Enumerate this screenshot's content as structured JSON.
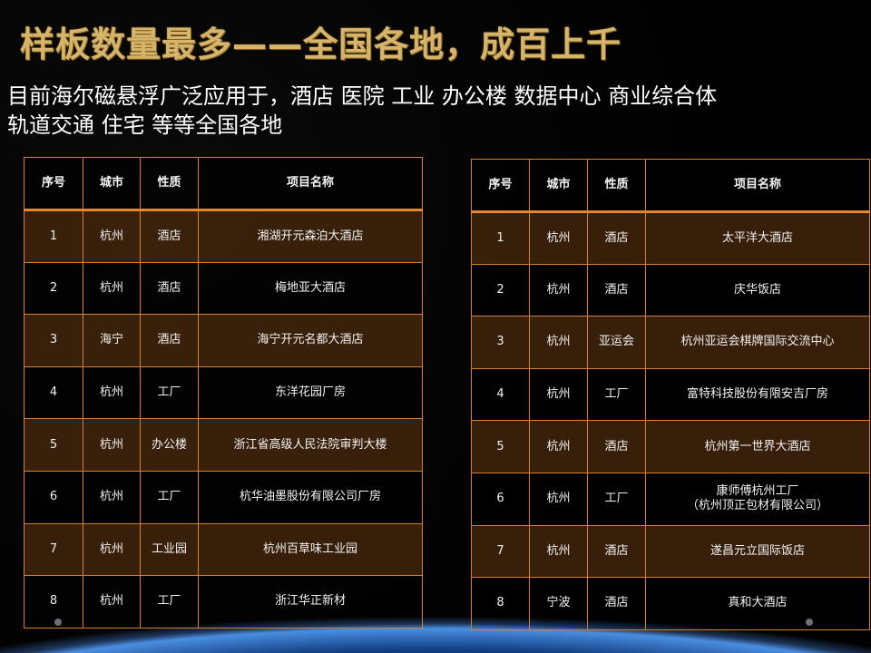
{
  "title": "样板数量最多——全国各地，成百上千",
  "subtitle_line1": "目前海尔磁悬浮广泛应用于，酒店  医院 工业 办公楼 数据中心  商业综合体",
  "subtitle_line2": "轨道交通 住宅 等等全国各地",
  "headers": [
    "序号",
    "城市",
    "性质",
    "项目名称"
  ],
  "left_table": [
    [
      "1",
      "杭州",
      "酒店",
      "湘湖开元森泊大酒店"
    ],
    [
      "2",
      "杭州",
      "酒店",
      "梅地亚大酒店"
    ],
    [
      "3",
      "海宁",
      "酒店",
      "海宁开元名都大酒店"
    ],
    [
      "4",
      "杭州",
      "工厂",
      "东洋花园厂房"
    ],
    [
      "5",
      "杭州",
      "办公楼",
      "浙江省高级人民法院审判大楼"
    ],
    [
      "6",
      "杭州",
      "工厂",
      "杭华油墨股份有限公司厂房"
    ],
    [
      "7",
      "杭州",
      "工业园",
      "杭州百草味工业园"
    ],
    [
      "8",
      "杭州",
      "工厂",
      "浙江华正新材"
    ]
  ],
  "right_table": [
    [
      "1",
      "杭州",
      "酒店",
      "太平洋大酒店"
    ],
    [
      "2",
      "杭州",
      "酒店",
      "庆华饭店"
    ],
    [
      "3",
      "杭州",
      "亚运会",
      "杭州亚运会棋牌国际交流中心"
    ],
    [
      "4",
      "杭州",
      "工厂",
      "富特科技股份有限安吉厂房"
    ],
    [
      "5",
      "杭州",
      "酒店",
      "杭州第一世界大酒店"
    ],
    [
      "6",
      "杭州",
      "工厂",
      "康师傅杭州工厂\n（杭州顶正包材有限公司）"
    ],
    [
      "7",
      "杭州",
      "酒店",
      "遂昌元立国际饭店"
    ],
    [
      "8",
      "宁波",
      "酒店",
      "真和大酒店"
    ]
  ],
  "colors": {
    "title_gold": "#d6b46a",
    "grid_orange": "#d9802a",
    "row_brown": "#46280c"
  }
}
